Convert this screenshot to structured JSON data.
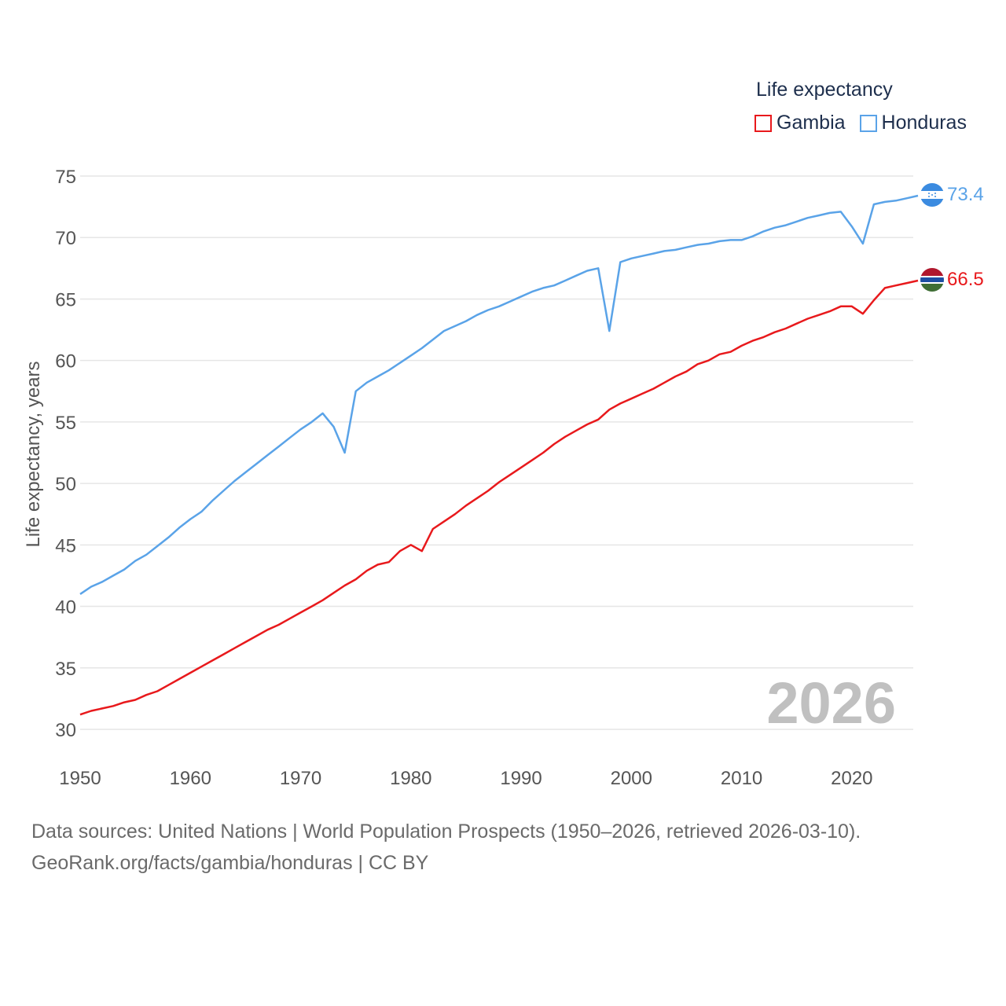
{
  "legend": {
    "title": "Life expectancy",
    "items": [
      {
        "name": "Gambia",
        "color": "#e8191c"
      },
      {
        "name": "Honduras",
        "color": "#5aa3e8"
      }
    ]
  },
  "footer": {
    "line1": "Data sources: United Nations | World Population Prospects (1950–2026, retrieved 2026-03-10).",
    "line2": "GeoRank.org/facts/gambia/honduras | CC BY"
  },
  "chart_data": {
    "type": "line",
    "title": "Life expectancy",
    "xlabel": "",
    "ylabel": "Life expectancy, years",
    "xlim": [
      1950,
      2026
    ],
    "ylim": [
      30,
      75
    ],
    "x_ticks": [
      1950,
      1960,
      1970,
      1980,
      1990,
      2000,
      2010,
      2020
    ],
    "y_ticks": [
      30,
      35,
      40,
      45,
      50,
      55,
      60,
      65,
      70,
      75
    ],
    "grid": true,
    "legend_position": "top-right",
    "year_watermark": "2026",
    "series": [
      {
        "name": "Gambia",
        "color": "#e8191c",
        "end_label": "66.5",
        "points": [
          [
            1950,
            31.2
          ],
          [
            1951,
            31.5
          ],
          [
            1952,
            31.7
          ],
          [
            1953,
            31.9
          ],
          [
            1954,
            32.2
          ],
          [
            1955,
            32.4
          ],
          [
            1956,
            32.8
          ],
          [
            1957,
            33.1
          ],
          [
            1958,
            33.6
          ],
          [
            1959,
            34.1
          ],
          [
            1960,
            34.6
          ],
          [
            1961,
            35.1
          ],
          [
            1962,
            35.6
          ],
          [
            1963,
            36.1
          ],
          [
            1964,
            36.6
          ],
          [
            1965,
            37.1
          ],
          [
            1966,
            37.6
          ],
          [
            1967,
            38.1
          ],
          [
            1968,
            38.5
          ],
          [
            1969,
            39.0
          ],
          [
            1970,
            39.5
          ],
          [
            1971,
            40.0
          ],
          [
            1972,
            40.5
          ],
          [
            1973,
            41.1
          ],
          [
            1974,
            41.7
          ],
          [
            1975,
            42.2
          ],
          [
            1976,
            42.9
          ],
          [
            1977,
            43.4
          ],
          [
            1978,
            43.6
          ],
          [
            1979,
            44.5
          ],
          [
            1980,
            45.0
          ],
          [
            1981,
            44.5
          ],
          [
            1982,
            46.3
          ],
          [
            1983,
            46.9
          ],
          [
            1984,
            47.5
          ],
          [
            1985,
            48.2
          ],
          [
            1986,
            48.8
          ],
          [
            1987,
            49.4
          ],
          [
            1988,
            50.1
          ],
          [
            1989,
            50.7
          ],
          [
            1990,
            51.3
          ],
          [
            1991,
            51.9
          ],
          [
            1992,
            52.5
          ],
          [
            1993,
            53.2
          ],
          [
            1994,
            53.8
          ],
          [
            1995,
            54.3
          ],
          [
            1996,
            54.8
          ],
          [
            1997,
            55.2
          ],
          [
            1998,
            56.0
          ],
          [
            1999,
            56.5
          ],
          [
            2000,
            56.9
          ],
          [
            2001,
            57.3
          ],
          [
            2002,
            57.7
          ],
          [
            2003,
            58.2
          ],
          [
            2004,
            58.7
          ],
          [
            2005,
            59.1
          ],
          [
            2006,
            59.7
          ],
          [
            2007,
            60.0
          ],
          [
            2008,
            60.5
          ],
          [
            2009,
            60.7
          ],
          [
            2010,
            61.2
          ],
          [
            2011,
            61.6
          ],
          [
            2012,
            61.9
          ],
          [
            2013,
            62.3
          ],
          [
            2014,
            62.6
          ],
          [
            2015,
            63.0
          ],
          [
            2016,
            63.4
          ],
          [
            2017,
            63.7
          ],
          [
            2018,
            64.0
          ],
          [
            2019,
            64.4
          ],
          [
            2020,
            64.4
          ],
          [
            2021,
            63.8
          ],
          [
            2022,
            64.9
          ],
          [
            2023,
            65.9
          ],
          [
            2024,
            66.1
          ],
          [
            2025,
            66.3
          ],
          [
            2026,
            66.5
          ]
        ]
      },
      {
        "name": "Honduras",
        "color": "#5aa3e8",
        "end_label": "73.4",
        "points": [
          [
            1950,
            41.0
          ],
          [
            1951,
            41.6
          ],
          [
            1952,
            42.0
          ],
          [
            1953,
            42.5
          ],
          [
            1954,
            43.0
          ],
          [
            1955,
            43.7
          ],
          [
            1956,
            44.2
          ],
          [
            1957,
            44.9
          ],
          [
            1958,
            45.6
          ],
          [
            1959,
            46.4
          ],
          [
            1960,
            47.1
          ],
          [
            1961,
            47.7
          ],
          [
            1962,
            48.6
          ],
          [
            1963,
            49.4
          ],
          [
            1964,
            50.2
          ],
          [
            1965,
            50.9
          ],
          [
            1966,
            51.6
          ],
          [
            1967,
            52.3
          ],
          [
            1968,
            53.0
          ],
          [
            1969,
            53.7
          ],
          [
            1970,
            54.4
          ],
          [
            1971,
            55.0
          ],
          [
            1972,
            55.7
          ],
          [
            1973,
            54.6
          ],
          [
            1974,
            52.5
          ],
          [
            1975,
            57.5
          ],
          [
            1976,
            58.2
          ],
          [
            1977,
            58.7
          ],
          [
            1978,
            59.2
          ],
          [
            1979,
            59.8
          ],
          [
            1980,
            60.4
          ],
          [
            1981,
            61.0
          ],
          [
            1982,
            61.7
          ],
          [
            1983,
            62.4
          ],
          [
            1984,
            62.8
          ],
          [
            1985,
            63.2
          ],
          [
            1986,
            63.7
          ],
          [
            1987,
            64.1
          ],
          [
            1988,
            64.4
          ],
          [
            1989,
            64.8
          ],
          [
            1990,
            65.2
          ],
          [
            1991,
            65.6
          ],
          [
            1992,
            65.9
          ],
          [
            1993,
            66.1
          ],
          [
            1994,
            66.5
          ],
          [
            1995,
            66.9
          ],
          [
            1996,
            67.3
          ],
          [
            1997,
            67.5
          ],
          [
            1998,
            62.4
          ],
          [
            1999,
            68.0
          ],
          [
            2000,
            68.3
          ],
          [
            2001,
            68.5
          ],
          [
            2002,
            68.7
          ],
          [
            2003,
            68.9
          ],
          [
            2004,
            69.0
          ],
          [
            2005,
            69.2
          ],
          [
            2006,
            69.4
          ],
          [
            2007,
            69.5
          ],
          [
            2008,
            69.7
          ],
          [
            2009,
            69.8
          ],
          [
            2010,
            69.8
          ],
          [
            2011,
            70.1
          ],
          [
            2012,
            70.5
          ],
          [
            2013,
            70.8
          ],
          [
            2014,
            71.0
          ],
          [
            2015,
            71.3
          ],
          [
            2016,
            71.6
          ],
          [
            2017,
            71.8
          ],
          [
            2018,
            72.0
          ],
          [
            2019,
            72.1
          ],
          [
            2020,
            70.9
          ],
          [
            2021,
            69.5
          ],
          [
            2022,
            72.7
          ],
          [
            2023,
            72.9
          ],
          [
            2024,
            73.0
          ],
          [
            2025,
            73.2
          ],
          [
            2026,
            73.4
          ]
        ]
      }
    ]
  }
}
